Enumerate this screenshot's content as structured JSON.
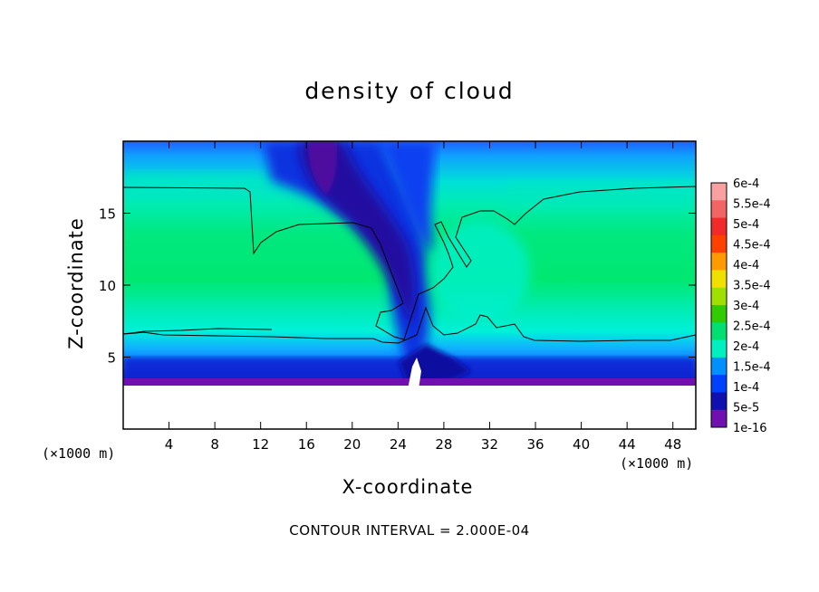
{
  "chart_data": {
    "type": "heatmap",
    "title": "density of cloud",
    "xlabel": "X-coordinate",
    "ylabel": "Z-coordinate",
    "x_unit_label_left": "(×1000 m)",
    "x_unit_label_right": "(×1000 m)",
    "xlim": [
      0,
      50
    ],
    "ylim": [
      0,
      20
    ],
    "x_ticks": [
      4,
      8,
      12,
      16,
      20,
      24,
      28,
      32,
      36,
      40,
      44,
      48
    ],
    "y_ticks": [
      5,
      10,
      15
    ],
    "colorbar": {
      "labels": [
        "6e-4",
        "5.5e-4",
        "5e-4",
        "4.5e-4",
        "4e-4",
        "3.5e-4",
        "3e-4",
        "2.5e-4",
        "2e-4",
        "1.5e-4",
        "1e-4",
        "5e-5",
        "1e-16"
      ],
      "colors": [
        "#f9a0a0",
        "#f26565",
        "#f22a2a",
        "#ff4000",
        "#ff9a00",
        "#f0e000",
        "#a0e000",
        "#30cc00",
        "#00e070",
        "#00f0c0",
        "#0090ff",
        "#0040ff",
        "#1010b0",
        "#7010b0"
      ]
    },
    "contour_note": "CONTOUR INTERVAL = 2.000E-04"
  }
}
